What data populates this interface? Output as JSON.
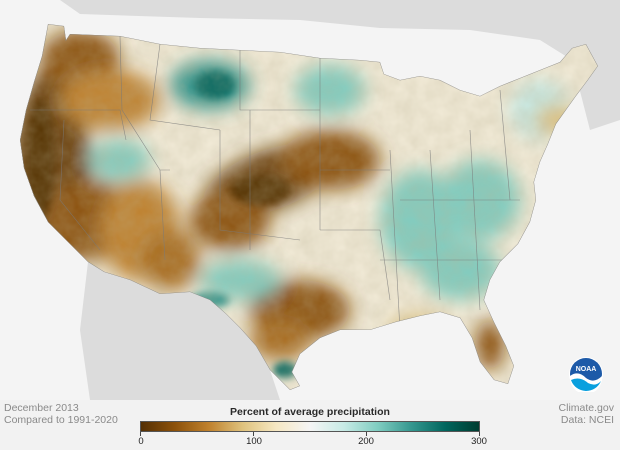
{
  "map": {
    "date_line": "December 2013",
    "baseline_line": "Compared to 1991-2020",
    "source_line": "Climate.gov",
    "data_line": "Data: NCEI",
    "logo_text": "NOAA"
  },
  "legend": {
    "title": "Percent of average precipitation",
    "ticks": [
      "0",
      "100",
      "200",
      "300"
    ],
    "colors": [
      "#543005",
      "#8c510a",
      "#bf812d",
      "#dfc27d",
      "#f6e8c3",
      "#f5f5f5",
      "#c7eae5",
      "#80cdc1",
      "#35978f",
      "#01665e",
      "#003c30"
    ]
  },
  "colors": {
    "background": "#f2f2f2",
    "land_outside": "#dcdcdc",
    "water": "#f4f4f4",
    "state_lines": "#7a7a7a"
  }
}
